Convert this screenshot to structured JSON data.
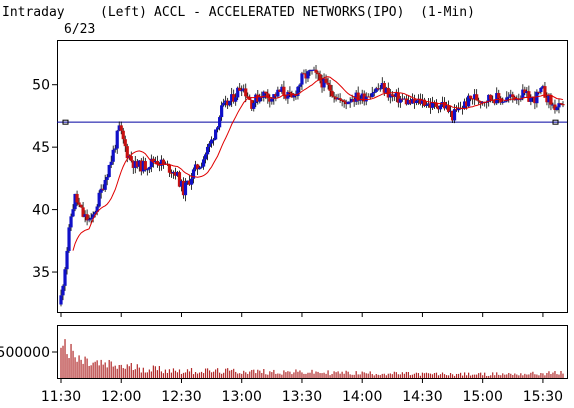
{
  "header": {
    "mode": "Intraday",
    "axis_side": "(Left)",
    "title": "ACCL - ACCELERATED NETWORKS(IPO)  (1-Min)",
    "date": "6/23"
  },
  "colors": {
    "up_candle": "#1010c8",
    "down_candle": "#c81010",
    "moving_average": "#e00000",
    "reference_line": "#0000a0",
    "volume_bars": "#b02828"
  },
  "chart_data": {
    "type": "candlestick",
    "title": "ACCL - ACCELERATED NETWORKS(IPO)  (1-Min)",
    "interval": "1-Min",
    "price_axis": {
      "ylim": [
        31.8,
        53.5
      ],
      "ticks": [
        35,
        40,
        45,
        50
      ],
      "side": "left"
    },
    "time_axis": {
      "range": [
        "11:30",
        "15:40"
      ],
      "ticks": [
        "11:30",
        "12:00",
        "12:30",
        "13:00",
        "13:30",
        "14:00",
        "14:30",
        "15:00",
        "15:30"
      ]
    },
    "reference_line": 47.0,
    "price_anchors": [
      {
        "t": "11:30",
        "p": 33.0
      },
      {
        "t": "11:32",
        "p": 35.5
      },
      {
        "t": "11:35",
        "p": 39.5
      },
      {
        "t": "11:37",
        "p": 41.0
      },
      {
        "t": "11:41",
        "p": 39.5
      },
      {
        "t": "11:45",
        "p": 39.0
      },
      {
        "t": "11:50",
        "p": 41.5
      },
      {
        "t": "11:55",
        "p": 44.0
      },
      {
        "t": "11:59",
        "p": 46.5
      },
      {
        "t": "12:03",
        "p": 44.5
      },
      {
        "t": "12:07",
        "p": 43.5
      },
      {
        "t": "12:12",
        "p": 43.5
      },
      {
        "t": "12:17",
        "p": 44.0
      },
      {
        "t": "12:22",
        "p": 43.5
      },
      {
        "t": "12:27",
        "p": 43.0
      },
      {
        "t": "12:31",
        "p": 41.5
      },
      {
        "t": "12:36",
        "p": 43.0
      },
      {
        "t": "12:40",
        "p": 43.8
      },
      {
        "t": "12:45",
        "p": 45.5
      },
      {
        "t": "12:50",
        "p": 48.0
      },
      {
        "t": "12:55",
        "p": 48.8
      },
      {
        "t": "13:00",
        "p": 50.0
      },
      {
        "t": "13:05",
        "p": 48.5
      },
      {
        "t": "13:10",
        "p": 49.3
      },
      {
        "t": "13:15",
        "p": 49.0
      },
      {
        "t": "13:20",
        "p": 49.5
      },
      {
        "t": "13:25",
        "p": 48.8
      },
      {
        "t": "13:30",
        "p": 50.5
      },
      {
        "t": "13:35",
        "p": 51.0
      },
      {
        "t": "13:40",
        "p": 50.2
      },
      {
        "t": "13:45",
        "p": 49.5
      },
      {
        "t": "13:50",
        "p": 48.5
      },
      {
        "t": "13:55",
        "p": 49.0
      },
      {
        "t": "14:00",
        "p": 49.0
      },
      {
        "t": "14:05",
        "p": 49.5
      },
      {
        "t": "14:10",
        "p": 49.8
      },
      {
        "t": "14:15",
        "p": 49.0
      },
      {
        "t": "14:20",
        "p": 48.8
      },
      {
        "t": "14:25",
        "p": 48.5
      },
      {
        "t": "14:30",
        "p": 48.7
      },
      {
        "t": "14:35",
        "p": 48.3
      },
      {
        "t": "14:40",
        "p": 48.5
      },
      {
        "t": "14:45",
        "p": 47.5
      },
      {
        "t": "14:50",
        "p": 48.3
      },
      {
        "t": "14:55",
        "p": 49.0
      },
      {
        "t": "15:00",
        "p": 48.8
      },
      {
        "t": "15:05",
        "p": 49.0
      },
      {
        "t": "15:10",
        "p": 48.8
      },
      {
        "t": "15:15",
        "p": 49.0
      },
      {
        "t": "15:20",
        "p": 49.2
      },
      {
        "t": "15:25",
        "p": 48.8
      },
      {
        "t": "15:30",
        "p": 49.5
      },
      {
        "t": "15:35",
        "p": 48.3
      },
      {
        "t": "15:40",
        "p": 48.0
      }
    ],
    "volume_axis": {
      "ticks": [
        500000
      ]
    },
    "volume_anchors": [
      {
        "t": "11:30",
        "v": 900000
      },
      {
        "t": "11:33",
        "v": 600000
      },
      {
        "t": "11:38",
        "v": 420000
      },
      {
        "t": "11:45",
        "v": 330000
      },
      {
        "t": "12:00",
        "v": 260000
      },
      {
        "t": "12:30",
        "v": 160000
      },
      {
        "t": "13:00",
        "v": 150000
      },
      {
        "t": "13:30",
        "v": 130000
      },
      {
        "t": "14:00",
        "v": 110000
      },
      {
        "t": "14:30",
        "v": 90000
      },
      {
        "t": "15:00",
        "v": 85000
      },
      {
        "t": "15:30",
        "v": 100000
      },
      {
        "t": "15:40",
        "v": 120000
      }
    ]
  }
}
